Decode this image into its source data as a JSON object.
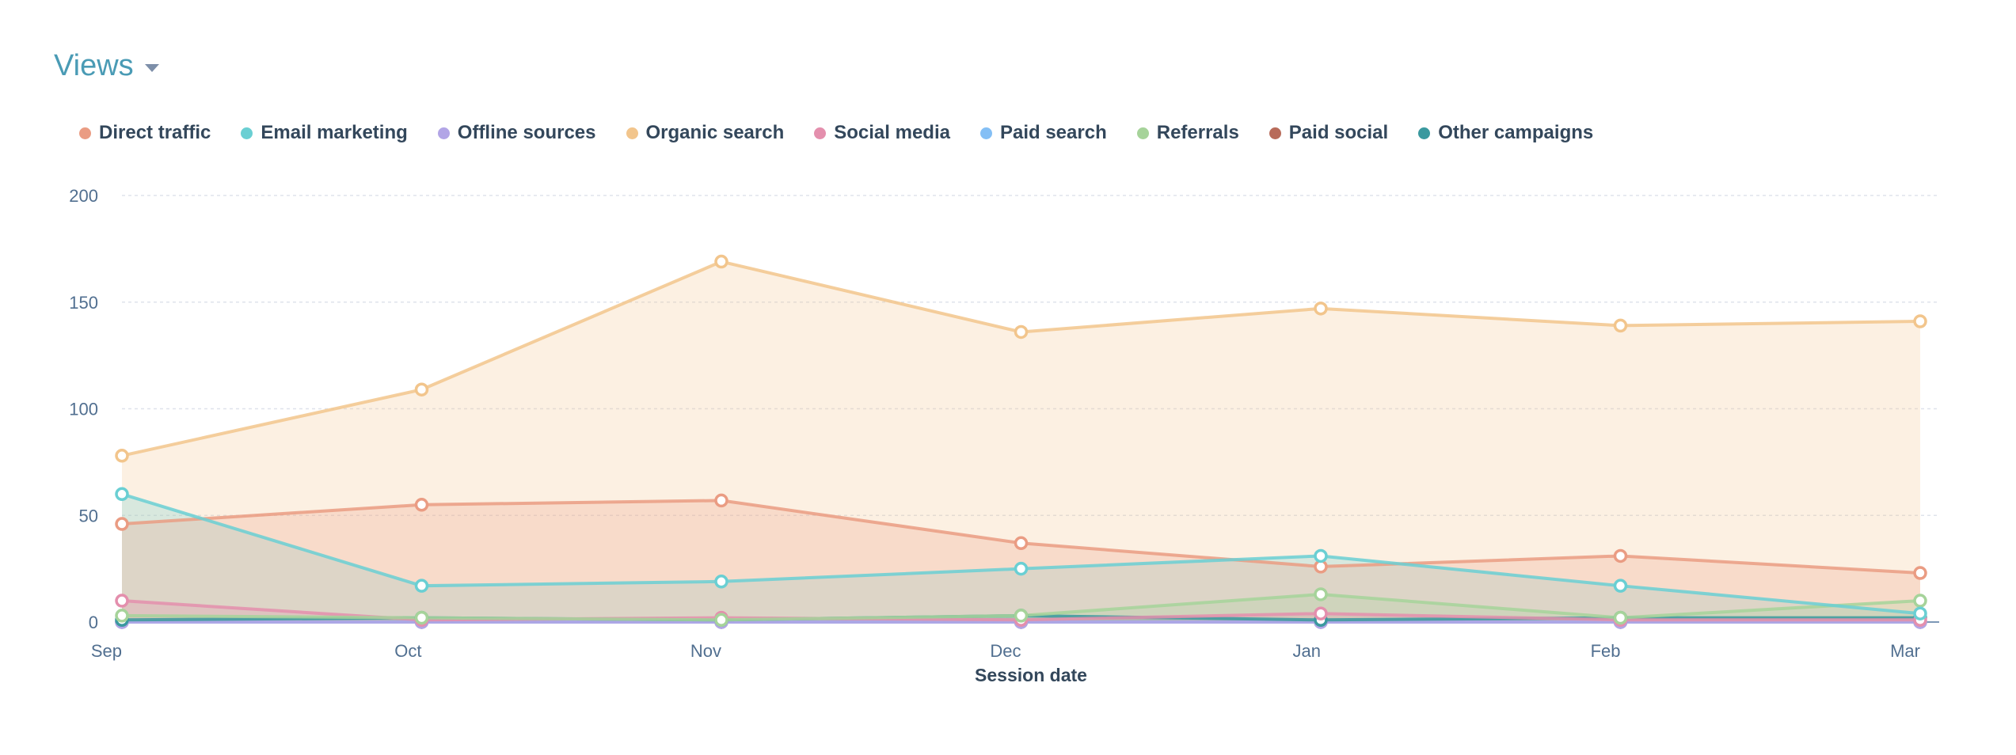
{
  "header": {
    "title": "Views"
  },
  "chart_data": {
    "type": "area",
    "title": "Views",
    "xlabel": "Session date",
    "ylabel": "",
    "ylim": [
      0,
      200
    ],
    "yticks": [
      0,
      50,
      100,
      150,
      200
    ],
    "ytick_labels": [
      "0",
      "50",
      "100",
      "150",
      "200"
    ],
    "grid": true,
    "legend_position": "top-left",
    "categories": [
      "Sep",
      "Oct",
      "Nov",
      "Dec",
      "Jan",
      "Feb",
      "Mar"
    ],
    "series": [
      {
        "name": "Direct traffic",
        "color": "#ea9c83",
        "values": [
          46,
          55,
          57,
          37,
          26,
          31,
          23
        ]
      },
      {
        "name": "Email marketing",
        "color": "#6acfd3",
        "values": [
          60,
          17,
          19,
          25,
          31,
          17,
          4
        ]
      },
      {
        "name": "Offline sources",
        "color": "#b2a5e6",
        "values": [
          0,
          0,
          0,
          0,
          0,
          0,
          0
        ]
      },
      {
        "name": "Organic search",
        "color": "#f2c58c",
        "values": [
          78,
          109,
          169,
          136,
          147,
          139,
          141
        ]
      },
      {
        "name": "Social media",
        "color": "#e48fad",
        "values": [
          10,
          1,
          2,
          1,
          4,
          1,
          1
        ]
      },
      {
        "name": "Paid search",
        "color": "#84bff5",
        "values": [
          0,
          0,
          0,
          0,
          0,
          0,
          0
        ]
      },
      {
        "name": "Referrals",
        "color": "#a6d39a",
        "values": [
          3,
          2,
          1,
          3,
          13,
          2,
          10
        ]
      },
      {
        "name": "Paid social",
        "color": "#b86b5a",
        "values": [
          0,
          0,
          0,
          0,
          0,
          0,
          0
        ]
      },
      {
        "name": "Other campaigns",
        "color": "#3a999f",
        "values": [
          1,
          2,
          1,
          3,
          1,
          2,
          2
        ]
      }
    ]
  }
}
